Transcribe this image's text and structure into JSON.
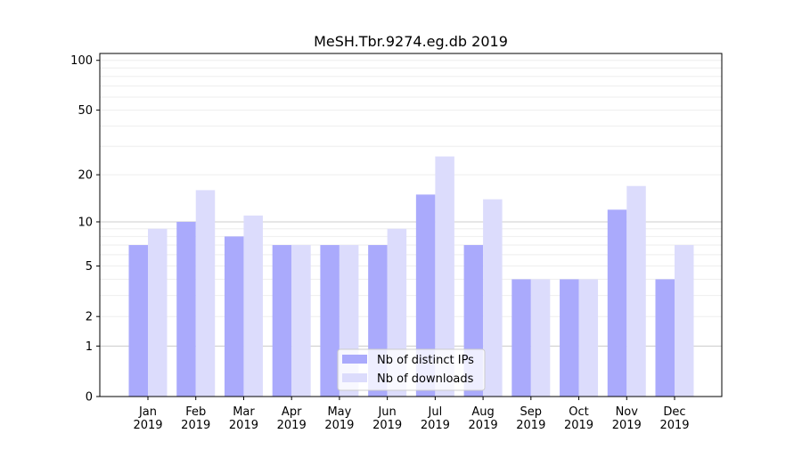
{
  "chart_data": {
    "type": "bar",
    "title": "MeSH.Tbr.9274.eg.db 2019",
    "xlabel": "",
    "ylabel": "",
    "yscale": "log(1+y)",
    "ylim": [
      0,
      110
    ],
    "yticks": [
      0,
      1,
      2,
      5,
      10,
      20,
      50,
      100
    ],
    "grid": true,
    "legend_position": "lower-center",
    "categories": [
      "Jan\n2019",
      "Feb\n2019",
      "Mar\n2019",
      "Apr\n2019",
      "May\n2019",
      "Jun\n2019",
      "Jul\n2019",
      "Aug\n2019",
      "Sep\n2019",
      "Oct\n2019",
      "Nov\n2019",
      "Dec\n2019"
    ],
    "series": [
      {
        "name": "Nb of distinct IPs",
        "color": "#aaaafc",
        "values": [
          7,
          10,
          8,
          7,
          7,
          7,
          15,
          7,
          4,
          4,
          12,
          4
        ]
      },
      {
        "name": "Nb of downloads",
        "color": "#dcdcfc",
        "values": [
          9,
          16,
          11,
          7,
          7,
          9,
          26,
          14,
          4,
          4,
          17,
          7
        ]
      }
    ]
  }
}
